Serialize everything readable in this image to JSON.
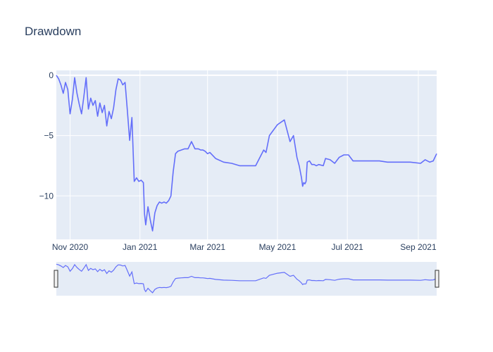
{
  "chart_data": {
    "type": "line",
    "title": "Drawdown",
    "xlabel": "",
    "ylabel": "",
    "x_range": [
      "2020-10-20",
      "2021-09-17"
    ],
    "ylim": [
      -13.6,
      0.4
    ],
    "y_ticks": [
      {
        "value": 0,
        "label": "0"
      },
      {
        "value": -5,
        "label": "−5"
      },
      {
        "value": -10,
        "label": "−10"
      }
    ],
    "x_ticks": [
      {
        "date": "2020-11-01",
        "label": "Nov 2020"
      },
      {
        "date": "2021-01-01",
        "label": "Jan 2021"
      },
      {
        "date": "2021-03-01",
        "label": "Mar 2021"
      },
      {
        "date": "2021-05-01",
        "label": "May 2021"
      },
      {
        "date": "2021-07-01",
        "label": "Jul 2021"
      },
      {
        "date": "2021-09-01",
        "label": "Sep 2021"
      }
    ],
    "grid": true,
    "legend": "none",
    "range_slider": true,
    "colors": {
      "line": "#636efa",
      "plot_bg": "#e5ecf6",
      "grid": "#ffffff",
      "text": "#2a3f5f"
    },
    "series": [
      {
        "x": [
          "2020-10-20",
          "2020-10-22",
          "2020-10-24",
          "2020-10-26",
          "2020-10-28",
          "2020-10-30",
          "2020-11-01",
          "2020-11-03",
          "2020-11-05",
          "2020-11-07",
          "2020-11-09",
          "2020-11-11",
          "2020-11-13",
          "2020-11-15",
          "2020-11-17",
          "2020-11-19",
          "2020-11-21",
          "2020-11-23",
          "2020-11-25",
          "2020-11-27",
          "2020-11-29",
          "2020-12-01",
          "2020-12-03",
          "2020-12-05",
          "2020-12-07",
          "2020-12-09",
          "2020-12-11",
          "2020-12-13",
          "2020-12-15",
          "2020-12-17",
          "2020-12-19",
          "2020-12-21",
          "2020-12-23",
          "2020-12-25",
          "2020-12-27",
          "2020-12-29",
          "2020-12-31",
          "2021-01-02",
          "2021-01-04",
          "2021-01-05",
          "2021-01-06",
          "2021-01-08",
          "2021-01-10",
          "2021-01-12",
          "2021-01-14",
          "2021-01-16",
          "2021-01-18",
          "2021-01-20",
          "2021-01-22",
          "2021-01-24",
          "2021-01-26",
          "2021-01-28",
          "2021-01-30",
          "2021-02-01",
          "2021-02-03",
          "2021-02-06",
          "2021-02-09",
          "2021-02-12",
          "2021-02-15",
          "2021-02-18",
          "2021-02-21",
          "2021-02-23",
          "2021-02-25",
          "2021-02-27",
          "2021-03-01",
          "2021-03-03",
          "2021-03-08",
          "2021-03-15",
          "2021-03-22",
          "2021-03-29",
          "2021-04-05",
          "2021-04-12",
          "2021-04-19",
          "2021-04-21",
          "2021-04-24",
          "2021-05-01",
          "2021-05-07",
          "2021-05-12",
          "2021-05-15",
          "2021-05-18",
          "2021-05-20",
          "2021-05-22",
          "2021-05-23",
          "2021-05-24",
          "2021-05-25",
          "2021-05-26",
          "2021-05-27",
          "2021-05-29",
          "2021-05-31",
          "2021-06-02",
          "2021-06-04",
          "2021-06-06",
          "2021-06-10",
          "2021-06-12",
          "2021-06-16",
          "2021-06-20",
          "2021-06-24",
          "2021-06-28",
          "2021-07-02",
          "2021-07-06",
          "2021-07-10",
          "2021-07-14",
          "2021-07-17",
          "2021-07-21",
          "2021-07-25",
          "2021-07-29",
          "2021-08-05",
          "2021-08-15",
          "2021-08-25",
          "2021-09-03",
          "2021-09-07",
          "2021-09-11",
          "2021-09-14",
          "2021-09-17"
        ],
        "y": [
          0,
          -0.3,
          -0.8,
          -1.5,
          -0.6,
          -1.2,
          -3.2,
          -2.0,
          -0.2,
          -1.5,
          -2.4,
          -3.2,
          -1.8,
          -0.2,
          -2.8,
          -1.9,
          -2.5,
          -2.1,
          -3.4,
          -2.3,
          -3.1,
          -2.5,
          -4.2,
          -3.0,
          -3.6,
          -2.7,
          -1.2,
          -0.3,
          -0.4,
          -0.8,
          -0.6,
          -2.9,
          -5.4,
          -3.5,
          -8.8,
          -8.5,
          -8.8,
          -8.7,
          -8.9,
          -11.5,
          -12.4,
          -10.9,
          -12.0,
          -12.9,
          -11.4,
          -10.8,
          -10.5,
          -10.6,
          -10.5,
          -10.6,
          -10.4,
          -10.0,
          -8.0,
          -6.5,
          -6.3,
          -6.2,
          -6.1,
          -6.1,
          -5.5,
          -6.1,
          -6.1,
          -6.2,
          -6.2,
          -6.3,
          -6.5,
          -6.4,
          -6.9,
          -7.2,
          -7.3,
          -7.5,
          -7.5,
          -7.5,
          -6.2,
          -6.4,
          -5.0,
          -4.1,
          -3.7,
          -5.5,
          -5.0,
          -6.8,
          -7.5,
          -8.5,
          -9.2,
          -8.9,
          -9.0,
          -8.8,
          -7.2,
          -7.1,
          -7.4,
          -7.4,
          -7.5,
          -7.4,
          -7.5,
          -6.9,
          -7.0,
          -7.3,
          -6.8,
          -6.6,
          -6.6,
          -7.1,
          -7.1,
          -7.1,
          -7.1,
          -7.1,
          -7.1,
          -7.1,
          -7.2,
          -7.2,
          -7.2,
          -7.3,
          -7.0,
          -7.2,
          -7.1,
          -6.5
        ]
      }
    ]
  }
}
